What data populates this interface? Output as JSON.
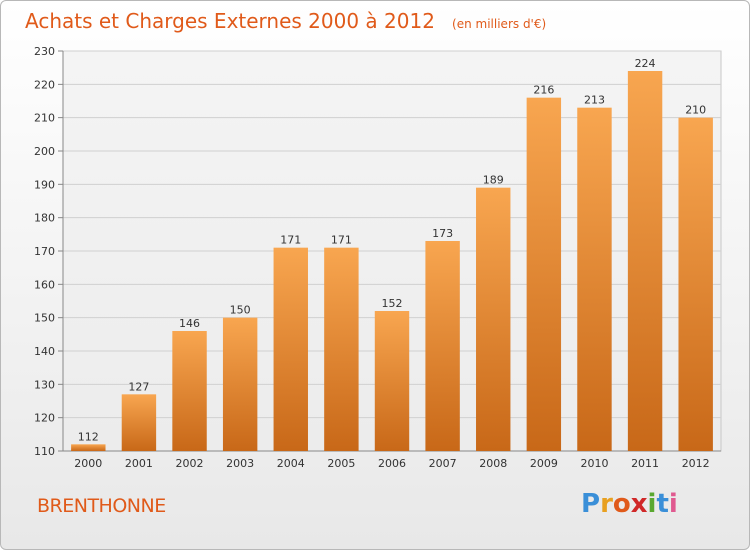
{
  "header": {
    "title": "Achats et Charges Externes 2000 à 2012",
    "subtitle": "(en milliers d'€)"
  },
  "footer": {
    "commune": "BRENTHONNE",
    "logo_letters": [
      "P",
      "r",
      "o",
      "x",
      "i",
      "t",
      "i"
    ],
    "logo_colors": [
      "#3a8fd8",
      "#e8a020",
      "#e05a1a",
      "#d02828",
      "#5aa830",
      "#3a8fd8",
      "#e05a90"
    ]
  },
  "chart_data": {
    "type": "bar",
    "categories": [
      "2000",
      "2001",
      "2002",
      "2003",
      "2004",
      "2005",
      "2006",
      "2007",
      "2008",
      "2009",
      "2010",
      "2011",
      "2012"
    ],
    "values": [
      112,
      127,
      146,
      150,
      171,
      171,
      152,
      173,
      189,
      216,
      213,
      224,
      210
    ],
    "ylim": [
      110,
      230
    ],
    "yticks": [
      110,
      120,
      130,
      140,
      150,
      160,
      170,
      180,
      190,
      200,
      210,
      220,
      230
    ],
    "grid": true,
    "bar_color_top": "#f8a650",
    "bar_color_bottom": "#c86818",
    "grid_color": "#d0d0d0"
  }
}
